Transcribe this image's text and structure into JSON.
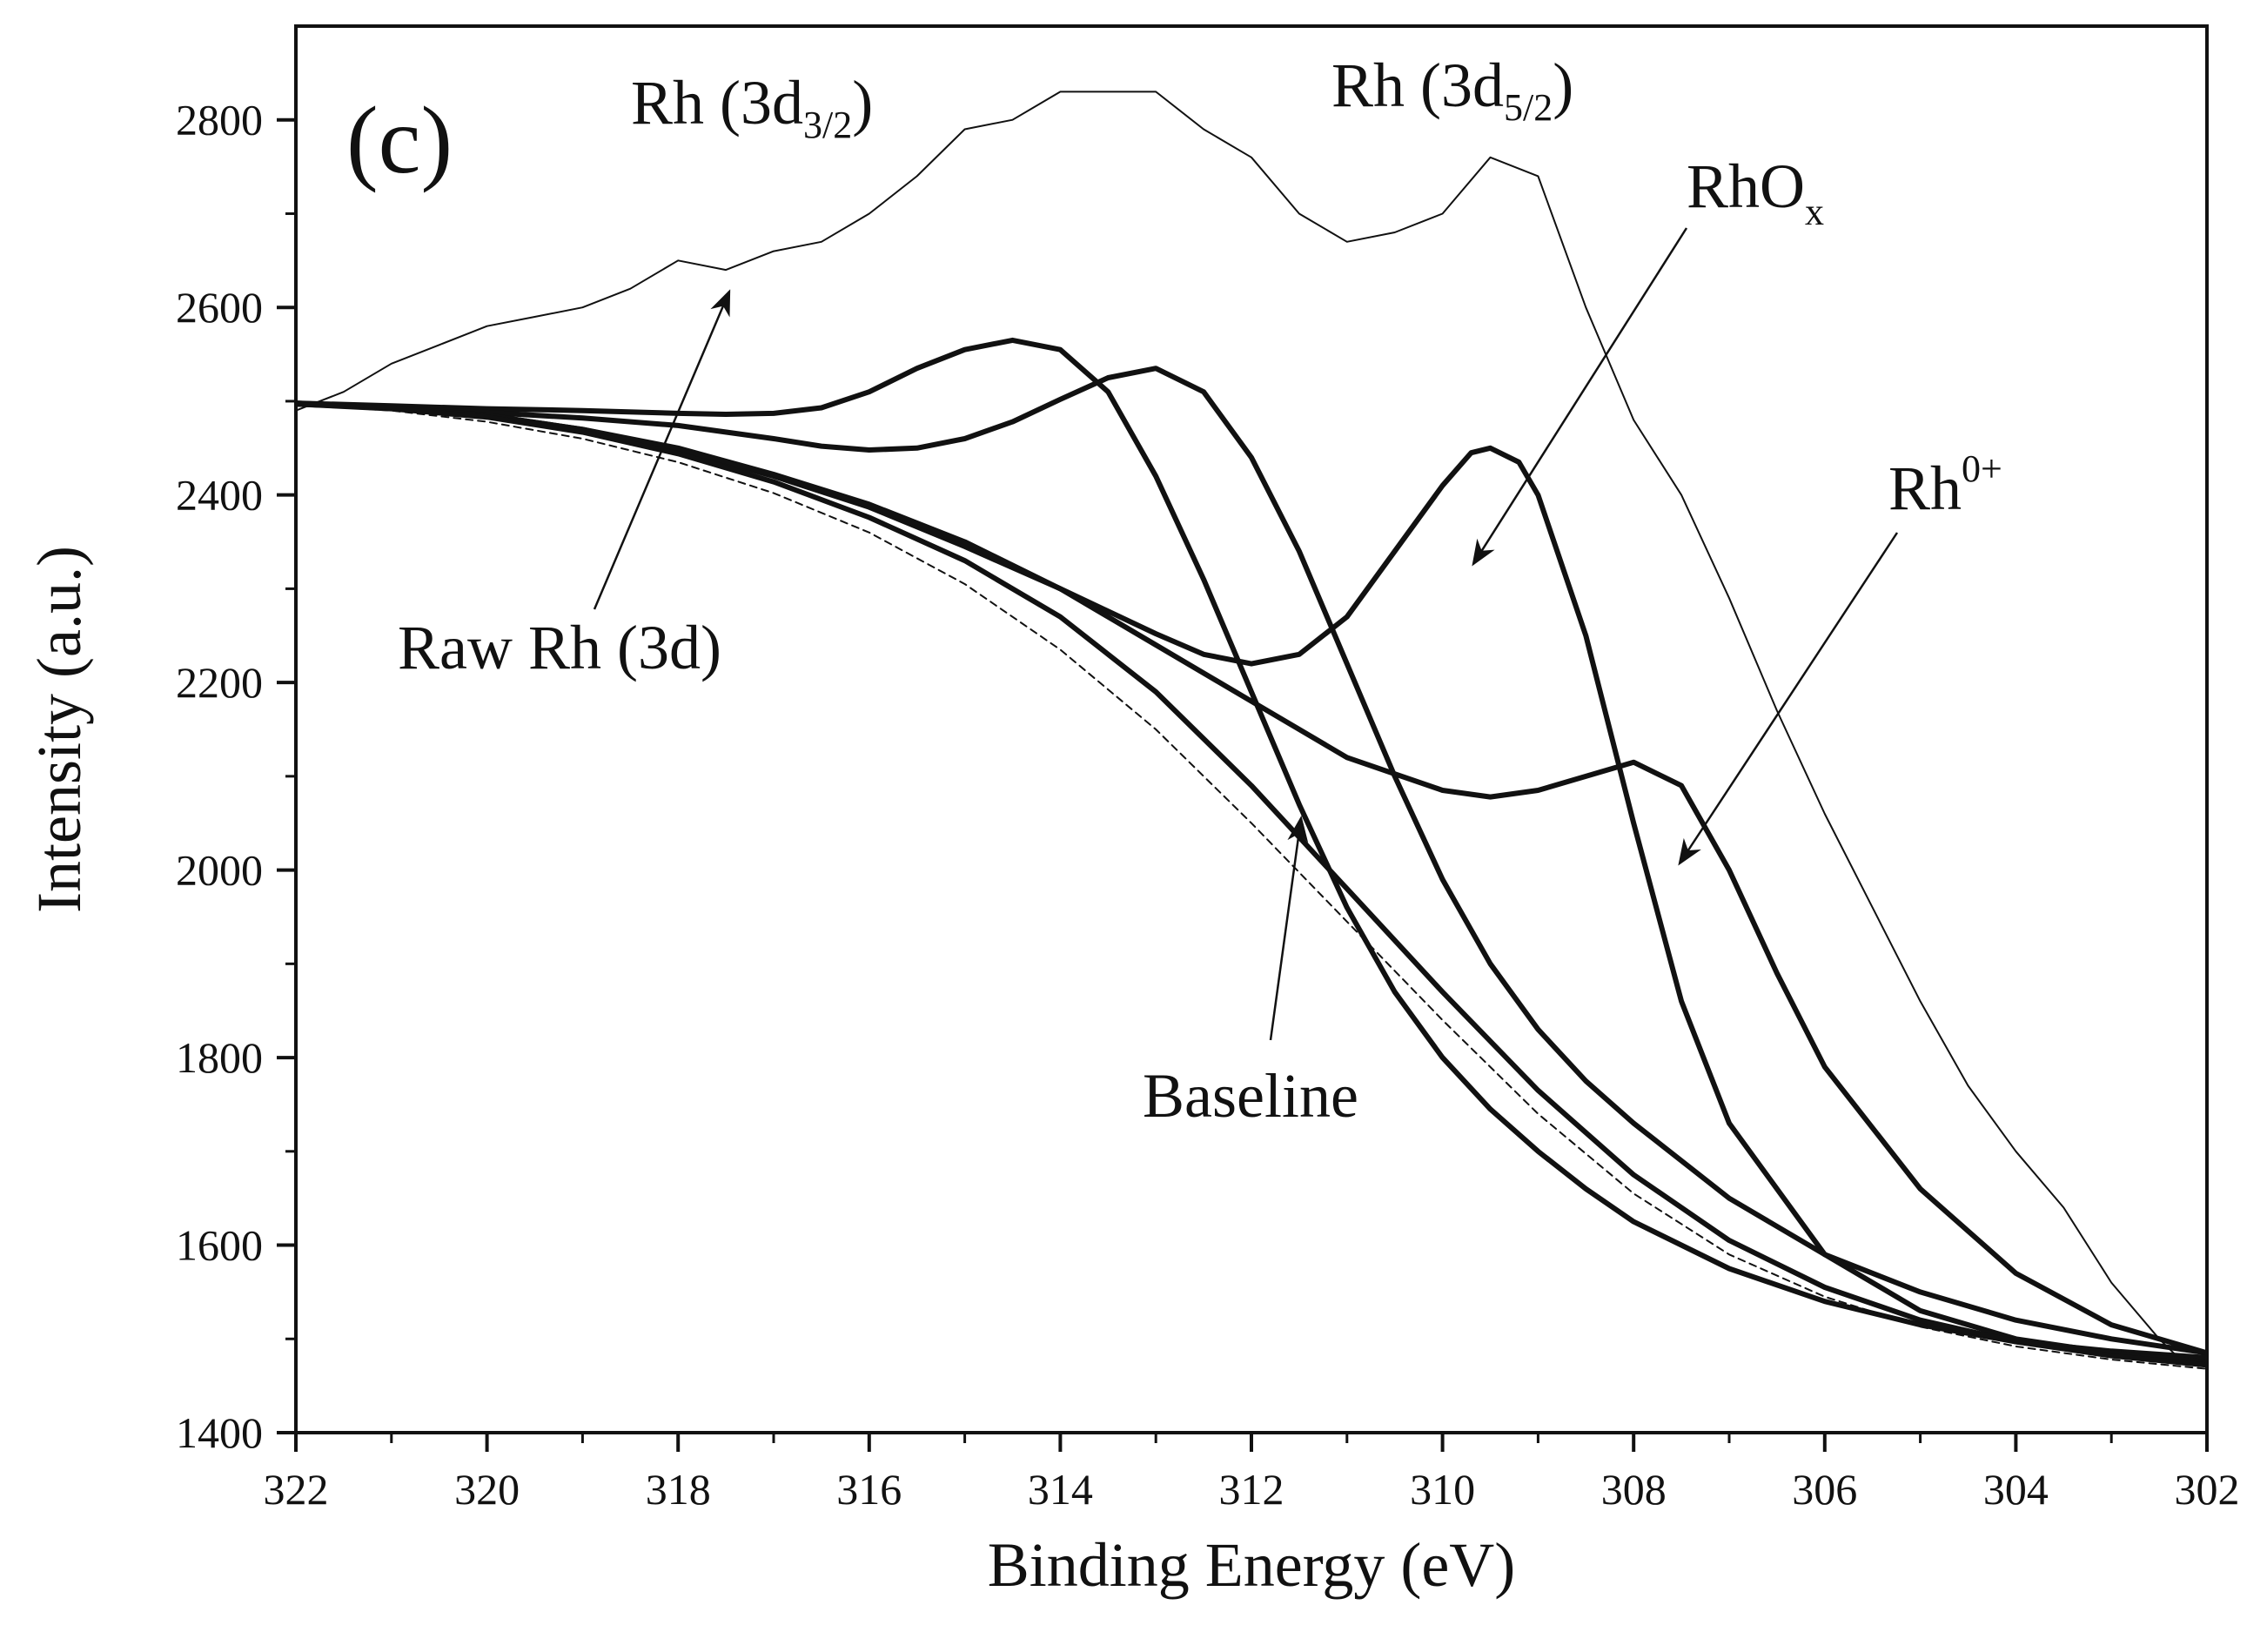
{
  "chart_data": {
    "type": "line",
    "panel_label": "(c)",
    "xlabel": "Binding Energy (eV)",
    "ylabel": "Intensity (a.u.)",
    "xlim": [
      322,
      302
    ],
    "ylim": [
      1400,
      2900
    ],
    "x_reversed": true,
    "x_ticks": [
      322,
      320,
      318,
      316,
      314,
      312,
      310,
      308,
      306,
      304,
      302
    ],
    "y_ticks": [
      1400,
      1600,
      1800,
      2000,
      2200,
      2400,
      2600,
      2800
    ],
    "grid": false,
    "annotations": {
      "rh32": {
        "base": "Rh (3d",
        "sub": "3/2",
        "tail": ")"
      },
      "rh52": {
        "base": "Rh (3d",
        "sub": "5/2",
        "tail": ")"
      },
      "rhox": {
        "base": "RhO",
        "sub": "x"
      },
      "rh0": {
        "base": "Rh",
        "sup": "0+"
      },
      "raw": {
        "text": "Raw Rh (3d)"
      },
      "baseline": {
        "text": "Baseline"
      }
    },
    "series": [
      {
        "name": "Raw Rh (3d)",
        "style": "thin",
        "x": [
          322,
          321.5,
          321,
          320.5,
          320,
          319.5,
          319,
          318.5,
          318,
          317.5,
          317,
          316.5,
          316,
          315.5,
          315,
          314.5,
          314,
          313.5,
          313,
          312.5,
          312,
          311.5,
          311,
          310.5,
          310,
          309.5,
          309,
          308.5,
          308,
          307.5,
          307,
          306.5,
          306,
          305.5,
          305,
          304.5,
          304,
          303.5,
          303,
          302.5,
          302.3
        ],
        "y": [
          2490,
          2510,
          2540,
          2560,
          2580,
          2590,
          2600,
          2620,
          2650,
          2640,
          2660,
          2670,
          2700,
          2740,
          2790,
          2800,
          2830,
          2830,
          2830,
          2790,
          2760,
          2700,
          2670,
          2680,
          2700,
          2760,
          2740,
          2600,
          2480,
          2400,
          2290,
          2170,
          2060,
          1960,
          1860,
          1770,
          1700,
          1640,
          1560,
          1500,
          1480
        ]
      },
      {
        "name": "Rh (3d3/2) envelope",
        "style": "thick",
        "x": [
          322,
          321,
          320,
          319,
          318,
          317.5,
          317,
          316.5,
          316,
          315.5,
          315,
          314.5,
          314,
          313.5,
          313,
          312.5,
          312,
          311.5,
          311,
          310.5,
          310,
          309.5,
          309,
          308.5,
          308,
          307,
          306,
          305,
          304,
          303,
          302
        ],
        "y": [
          2498,
          2495,
          2492,
          2490,
          2487,
          2486,
          2487,
          2493,
          2510,
          2535,
          2555,
          2565,
          2555,
          2510,
          2420,
          2310,
          2190,
          2070,
          1960,
          1870,
          1800,
          1745,
          1700,
          1660,
          1625,
          1575,
          1540,
          1515,
          1497,
          1487,
          1480
        ]
      },
      {
        "name": "Rh (3d3/2) satellite",
        "style": "thick",
        "x": [
          322,
          321,
          320,
          319,
          318,
          317,
          316.5,
          316,
          315.5,
          315,
          314.5,
          314,
          313.5,
          313,
          312.5,
          312,
          311.5,
          311,
          310.5,
          310,
          309.5,
          309,
          308.5,
          308,
          307,
          306,
          305,
          304,
          303,
          302
        ],
        "y": [
          2498,
          2493,
          2488,
          2482,
          2474,
          2460,
          2452,
          2448,
          2450,
          2460,
          2478,
          2502,
          2525,
          2535,
          2510,
          2440,
          2340,
          2220,
          2100,
          1990,
          1900,
          1830,
          1775,
          1730,
          1650,
          1590,
          1550,
          1520,
          1500,
          1485
        ]
      },
      {
        "name": "RhOx",
        "style": "thick",
        "x": [
          322,
          321,
          320,
          319,
          318,
          317,
          316,
          315,
          314,
          313,
          312.5,
          312,
          311.5,
          311,
          310.5,
          310,
          309.7,
          309.5,
          309.2,
          309,
          308.5,
          308,
          307.5,
          307,
          306,
          305,
          304,
          303,
          302
        ],
        "y": [
          2497,
          2493,
          2485,
          2470,
          2448,
          2420,
          2387,
          2345,
          2300,
          2252,
          2230,
          2220,
          2230,
          2270,
          2340,
          2410,
          2445,
          2450,
          2435,
          2400,
          2250,
          2050,
          1860,
          1730,
          1590,
          1530,
          1500,
          1485,
          1475
        ]
      },
      {
        "name": "Rh0+",
        "style": "thick",
        "x": [
          322,
          321,
          320,
          319,
          318,
          317,
          316,
          315,
          314,
          313,
          312,
          311,
          310,
          309.5,
          309,
          308.5,
          308,
          307.5,
          307,
          306.5,
          306,
          305,
          304,
          303,
          302
        ],
        "y": [
          2497,
          2493,
          2485,
          2470,
          2450,
          2422,
          2390,
          2350,
          2300,
          2240,
          2180,
          2120,
          2085,
          2078,
          2085,
          2100,
          2115,
          2090,
          2000,
          1890,
          1790,
          1660,
          1570,
          1515,
          1485
        ]
      },
      {
        "name": "Rh (3d) sum",
        "style": "thick",
        "x": [
          322,
          321,
          320,
          319,
          318,
          317,
          316,
          315,
          314,
          313,
          312,
          311,
          310,
          309,
          308,
          307,
          306,
          305,
          304,
          303,
          302
        ],
        "y": [
          2497,
          2492,
          2483,
          2467,
          2444,
          2414,
          2376,
          2330,
          2270,
          2190,
          2090,
          1980,
          1870,
          1765,
          1675,
          1605,
          1555,
          1520,
          1497,
          1482,
          1472
        ]
      },
      {
        "name": "Baseline",
        "style": "dashed",
        "x": [
          322,
          321,
          320,
          319,
          318,
          317,
          316,
          315,
          314,
          313,
          312,
          311,
          310,
          309,
          308,
          307,
          306,
          305,
          304,
          303,
          302
        ],
        "y": [
          2496,
          2490,
          2478,
          2460,
          2435,
          2402,
          2360,
          2305,
          2235,
          2150,
          2050,
          1945,
          1840,
          1740,
          1655,
          1590,
          1545,
          1513,
          1492,
          1478,
          1468
        ]
      }
    ]
  }
}
